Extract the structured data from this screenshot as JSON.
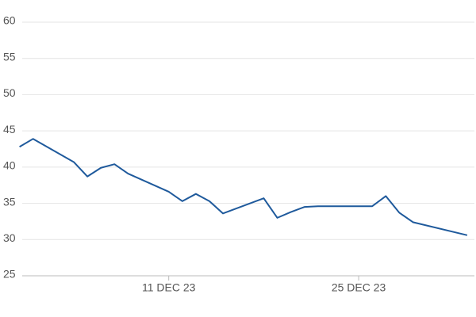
{
  "chart_data": {
    "type": "line",
    "x": [
      "2023-11-30",
      "2023-12-01",
      "2023-12-04",
      "2023-12-05",
      "2023-12-06",
      "2023-12-07",
      "2023-12-08",
      "2023-12-11",
      "2023-12-12",
      "2023-12-13",
      "2023-12-14",
      "2023-12-15",
      "2023-12-18",
      "2023-12-19",
      "2023-12-20",
      "2023-12-21",
      "2023-12-22",
      "2023-12-26",
      "2023-12-27",
      "2023-12-28",
      "2023-12-29",
      "2024-01-02"
    ],
    "series": [
      {
        "color": "#1f5a9c",
        "values": [
          42.8,
          43.9,
          40.7,
          38.7,
          39.9,
          40.4,
          39.1,
          36.6,
          35.3,
          36.3,
          35.3,
          33.6,
          35.7,
          33.0,
          33.8,
          34.5,
          34.6,
          34.6,
          36.0,
          33.7,
          32.4,
          30.6
        ]
      }
    ],
    "xlim": [
      "2023-11-30",
      "2024-01-03"
    ],
    "xticks": [
      {
        "value": "2023-12-11",
        "label": "11 DEC 23"
      },
      {
        "value": "2023-12-25",
        "label": "25 DEC 23"
      }
    ],
    "ylim": [
      25,
      60
    ],
    "yticks": [
      25,
      30,
      35,
      40,
      45,
      50,
      55,
      60
    ],
    "grid": true
  }
}
